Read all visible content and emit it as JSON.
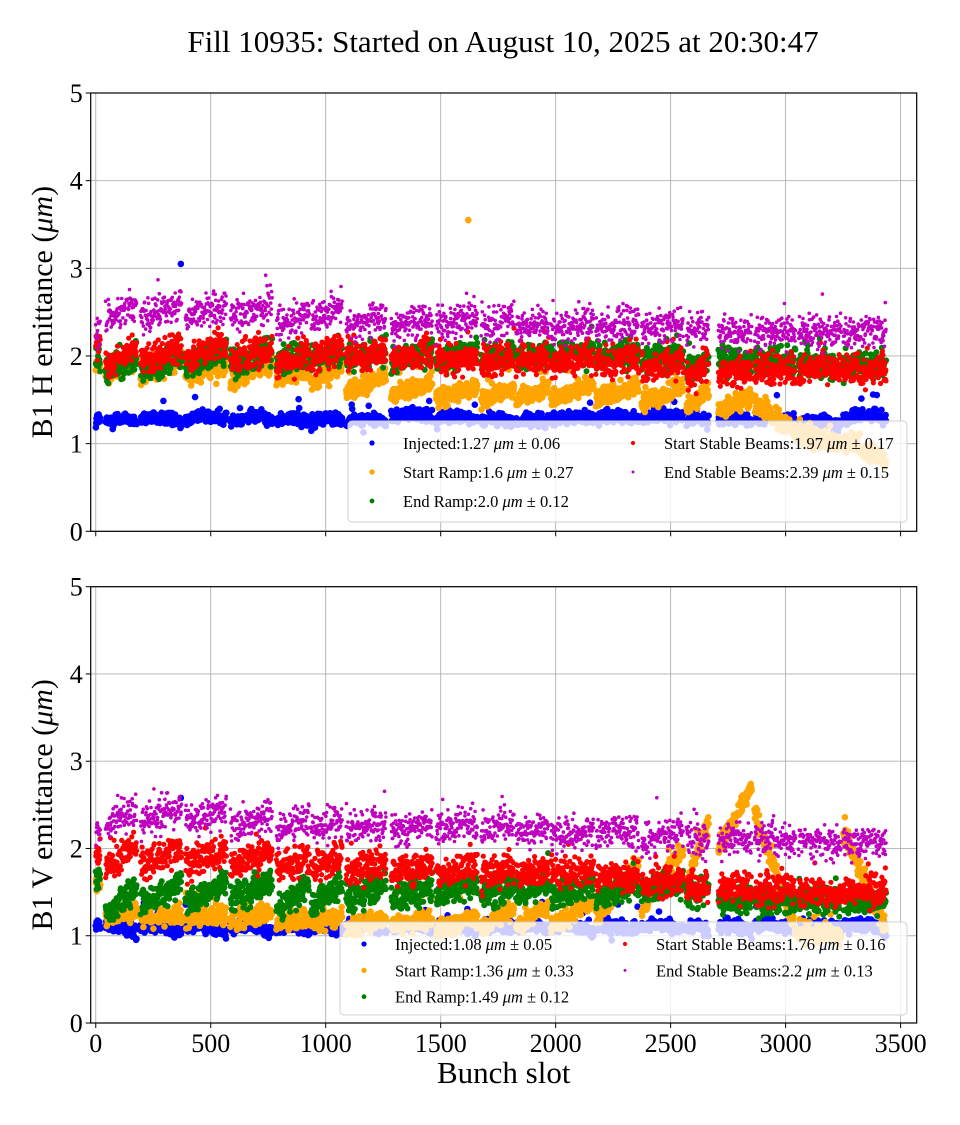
{
  "chart_data": [
    {
      "type": "scatter",
      "title": "Fill 10935: Started on August 10, 2025 at 20:30:47",
      "ylabel_prefix": "B1 H emittance (",
      "ylabel_unit": "μm",
      "ylabel_suffix": ")",
      "xlabel": "",
      "xlim": [
        -22,
        3570
      ],
      "ylim": [
        0,
        5
      ],
      "xticks": [
        0,
        500,
        1000,
        1500,
        2000,
        2500,
        3000,
        3500
      ],
      "xtick_labels_visible": false,
      "yticks": [
        0,
        1,
        2,
        3,
        4,
        5
      ],
      "grid": true,
      "legend_placement": "lower-right",
      "bunch_trains": [
        [
          0,
          20
        ],
        [
          43,
          178
        ],
        [
          195,
          373
        ],
        [
          390,
          568
        ],
        [
          586,
          768
        ],
        [
          786,
          929
        ],
        [
          937,
          1072
        ],
        [
          1089,
          1263
        ],
        [
          1285,
          1463
        ],
        [
          1480,
          1660
        ],
        [
          1676,
          1819
        ],
        [
          1828,
          1970
        ],
        [
          1979,
          2166
        ],
        [
          2175,
          2361
        ],
        [
          2374,
          2556
        ],
        [
          2569,
          2665
        ],
        [
          2708,
          2852
        ],
        [
          2865,
          3043
        ],
        [
          3056,
          3243
        ],
        [
          3251,
          3438
        ]
      ],
      "series": [
        {
          "name": "Injected",
          "mean": "1.27",
          "std": "0.06",
          "color": "#0000ff",
          "train_levels": [
            1.25,
            1.25,
            1.26,
            1.27,
            1.27,
            1.25,
            1.26,
            1.24,
            1.3,
            1.27,
            1.25,
            1.24,
            1.27,
            1.28,
            1.29,
            1.27,
            1.25,
            1.26,
            1.22,
            1.28
          ],
          "outliers": [
            [
              370,
              3.05
            ]
          ]
        },
        {
          "name": "Start Ramp",
          "mean": "1.6",
          "std": "0.27",
          "color": "#ffa500",
          "train_levels": [
            1.9,
            [
              1.8,
              1.95
            ],
            [
              1.75,
              1.95
            ],
            [
              1.75,
              1.9
            ],
            [
              1.72,
              1.9
            ],
            [
              1.75,
              1.85
            ],
            [
              1.7,
              1.9
            ],
            [
              1.6,
              1.75
            ],
            [
              1.55,
              1.7
            ],
            [
              1.5,
              1.65
            ],
            [
              1.5,
              1.65
            ],
            [
              1.5,
              1.65
            ],
            [
              1.5,
              1.7
            ],
            [
              1.5,
              1.65
            ],
            [
              1.45,
              1.65
            ],
            [
              1.4,
              1.6
            ],
            [
              1.4,
              1.55
            ],
            [
              1.45,
              1.15
            ],
            [
              1.1,
              1.0
            ],
            [
              1.05,
              0.8
            ]
          ],
          "outliers": [
            [
              1620,
              3.55
            ]
          ]
        },
        {
          "name": "End Ramp",
          "mean": "2.0",
          "std": "0.12",
          "color": "#008000",
          "train_levels": [
            1.9,
            [
              1.8,
              2.0
            ],
            [
              1.85,
              2.0
            ],
            [
              1.9,
              2.05
            ],
            [
              1.9,
              2.05
            ],
            [
              1.9,
              2.05
            ],
            [
              1.95,
              2.05
            ],
            [
              1.95,
              2.05
            ],
            [
              1.95,
              2.05
            ],
            [
              1.95,
              2.05
            ],
            [
              1.95,
              2.05
            ],
            [
              1.95,
              2.05
            ],
            [
              2.0,
              2.05
            ],
            [
              2.0,
              2.05
            ],
            [
              1.95,
              2.0
            ],
            [
              1.85,
              1.95
            ],
            [
              1.95,
              1.95
            ],
            [
              1.95,
              1.95
            ],
            [
              1.9,
              1.9
            ],
            [
              1.9,
              1.9
            ]
          ],
          "outliers": []
        },
        {
          "name": "Start Stable Beams",
          "mean": "1.97",
          "std": "0.17",
          "color": "#ff0000",
          "train_levels": [
            2.1,
            [
              1.9,
              2.1
            ],
            [
              1.95,
              2.1
            ],
            [
              1.95,
              2.15
            ],
            [
              1.95,
              2.1
            ],
            [
              1.9,
              2.05
            ],
            [
              1.95,
              2.1
            ],
            [
              1.95,
              2.05
            ],
            [
              1.95,
              2.05
            ],
            [
              1.95,
              2.0
            ],
            [
              1.9,
              2.0
            ],
            [
              1.9,
              2.0
            ],
            [
              1.9,
              2.0
            ],
            [
              1.9,
              2.0
            ],
            [
              1.85,
              1.95
            ],
            [
              1.75,
              1.9
            ],
            [
              1.8,
              1.85
            ],
            [
              1.85,
              1.85
            ],
            [
              1.85,
              1.85
            ],
            [
              1.85,
              1.85
            ]
          ],
          "outliers": []
        },
        {
          "name": "End Stable Beams",
          "mean": "2.39",
          "std": "0.15",
          "color": "#bf00bf",
          "train_levels": [
            2.3,
            [
              2.4,
              2.6
            ],
            [
              2.45,
              2.6
            ],
            [
              2.45,
              2.6
            ],
            [
              2.45,
              2.6
            ],
            [
              2.35,
              2.5
            ],
            [
              2.4,
              2.6
            ],
            [
              2.3,
              2.45
            ],
            [
              2.3,
              2.45
            ],
            [
              2.35,
              2.45
            ],
            [
              2.3,
              2.45
            ],
            [
              2.3,
              2.4
            ],
            [
              2.3,
              2.4
            ],
            [
              2.3,
              2.4
            ],
            [
              2.3,
              2.35
            ],
            [
              2.3,
              2.35
            ],
            [
              2.25,
              2.3
            ],
            [
              2.25,
              2.3
            ],
            [
              2.25,
              2.3
            ],
            [
              2.25,
              2.3
            ]
          ],
          "outliers": []
        }
      ]
    },
    {
      "type": "scatter",
      "ylabel_prefix": "B1 V emittance (",
      "ylabel_unit": "μm",
      "ylabel_suffix": ")",
      "xlabel": "Bunch slot",
      "xlim": [
        -22,
        3570
      ],
      "ylim": [
        0,
        5
      ],
      "xticks": [
        0,
        500,
        1000,
        1500,
        2000,
        2500,
        3000,
        3500
      ],
      "xtick_labels_visible": true,
      "yticks": [
        0,
        1,
        2,
        3,
        4,
        5
      ],
      "grid": true,
      "legend_placement": "lower-right",
      "bunch_trains": [
        [
          0,
          20
        ],
        [
          43,
          178
        ],
        [
          195,
          373
        ],
        [
          390,
          568
        ],
        [
          586,
          768
        ],
        [
          786,
          929
        ],
        [
          937,
          1072
        ],
        [
          1089,
          1263
        ],
        [
          1285,
          1463
        ],
        [
          1480,
          1660
        ],
        [
          1676,
          1819
        ],
        [
          1828,
          1970
        ],
        [
          1979,
          2166
        ],
        [
          2175,
          2361
        ],
        [
          2374,
          2556
        ],
        [
          2569,
          2665
        ],
        [
          2708,
          2852
        ],
        [
          2865,
          3043
        ],
        [
          3056,
          3243
        ],
        [
          3251,
          3438
        ]
      ],
      "series": [
        {
          "name": "Injected",
          "mean": "1.08",
          "std": "0.05",
          "color": "#0000ff",
          "train_levels": [
            [
              1.12,
              1.1
            ],
            [
              1.1,
              1.04
            ],
            [
              1.1,
              1.04
            ],
            [
              1.1,
              1.04
            ],
            [
              1.1,
              1.04
            ],
            [
              1.1,
              1.04
            ],
            [
              1.1,
              1.04
            ],
            [
              1.1,
              1.06
            ],
            [
              1.1,
              1.06
            ],
            [
              1.1,
              1.06
            ],
            [
              1.1,
              1.06
            ],
            [
              1.1,
              1.06
            ],
            [
              1.1,
              1.06
            ],
            [
              1.1,
              1.06
            ],
            [
              1.1,
              1.06
            ],
            [
              1.1,
              1.06
            ],
            [
              1.1,
              1.06
            ],
            [
              1.1,
              1.06
            ],
            [
              1.1,
              1.06
            ],
            [
              1.12,
              1.06
            ]
          ],
          "outliers": [
            [
              370,
              2.58
            ]
          ]
        },
        {
          "name": "Start Ramp",
          "mean": "1.36",
          "std": "0.33",
          "color": "#ffa500",
          "train_levels": [
            1.6,
            [
              1.2,
              1.3
            ],
            [
              1.2,
              1.25
            ],
            [
              1.2,
              1.25
            ],
            [
              1.2,
              1.25
            ],
            [
              1.15,
              1.2
            ],
            [
              1.15,
              1.25
            ],
            [
              1.1,
              1.2
            ],
            [
              1.1,
              1.2
            ],
            [
              1.05,
              1.2
            ],
            [
              1.1,
              1.3
            ],
            [
              1.1,
              1.35
            ],
            [
              1.1,
              1.4
            ],
            [
              1.2,
              1.8
            ],
            [
              1.3,
              2.0
            ],
            [
              1.6,
              2.3
            ],
            [
              2.0,
              2.7
            ],
            [
              2.4,
              1.1
            ],
            [
              1.05,
              1.0
            ],
            [
              2.2,
              1.05
            ]
          ],
          "outliers": []
        },
        {
          "name": "End Ramp",
          "mean": "1.49",
          "std": "0.12",
          "color": "#008000",
          "train_levels": [
            1.7,
            [
              1.25,
              1.55
            ],
            [
              1.35,
              1.6
            ],
            [
              1.35,
              1.65
            ],
            [
              1.4,
              1.65
            ],
            [
              1.3,
              1.6
            ],
            [
              1.35,
              1.6
            ],
            [
              1.4,
              1.6
            ],
            [
              1.4,
              1.6
            ],
            [
              1.45,
              1.6
            ],
            [
              1.45,
              1.6
            ],
            [
              1.45,
              1.6
            ],
            [
              1.45,
              1.6
            ],
            [
              1.45,
              1.6
            ],
            [
              1.5,
              1.6
            ],
            [
              1.45,
              1.55
            ],
            [
              1.4,
              1.4
            ],
            [
              1.4,
              1.4
            ],
            [
              1.4,
              1.4
            ],
            [
              1.4,
              1.4
            ]
          ],
          "outliers": []
        },
        {
          "name": "Start Stable Beams",
          "mean": "1.76",
          "std": "0.16",
          "color": "#ff0000",
          "train_levels": [
            1.95,
            [
              1.8,
              2.0
            ],
            [
              1.8,
              2.0
            ],
            [
              1.8,
              2.0
            ],
            [
              1.8,
              1.95
            ],
            [
              1.75,
              1.9
            ],
            [
              1.75,
              1.9
            ],
            [
              1.7,
              1.85
            ],
            [
              1.7,
              1.8
            ],
            [
              1.7,
              1.8
            ],
            [
              1.7,
              1.8
            ],
            [
              1.7,
              1.75
            ],
            [
              1.7,
              1.75
            ],
            [
              1.65,
              1.7
            ],
            [
              1.6,
              1.65
            ],
            [
              1.55,
              1.6
            ],
            [
              1.55,
              1.55
            ],
            [
              1.55,
              1.55
            ],
            [
              1.5,
              1.5
            ],
            [
              1.5,
              1.5
            ]
          ],
          "outliers": []
        },
        {
          "name": "End Stable Beams",
          "mean": "2.2",
          "std": "0.13",
          "color": "#bf00bf",
          "train_levels": [
            2.2,
            [
              2.25,
              2.45
            ],
            [
              2.3,
              2.45
            ],
            [
              2.3,
              2.45
            ],
            [
              2.25,
              2.4
            ],
            [
              2.2,
              2.35
            ],
            [
              2.2,
              2.35
            ],
            [
              2.2,
              2.3
            ],
            [
              2.2,
              2.3
            ],
            [
              2.2,
              2.3
            ],
            [
              2.2,
              2.3
            ],
            [
              2.15,
              2.25
            ],
            [
              2.15,
              2.2
            ],
            [
              2.15,
              2.2
            ],
            [
              2.1,
              2.2
            ],
            [
              2.1,
              2.1
            ],
            [
              2.1,
              2.1
            ],
            [
              2.1,
              2.1
            ],
            [
              2.05,
              2.05
            ],
            [
              2.05,
              2.05
            ]
          ],
          "outliers": []
        }
      ]
    }
  ]
}
